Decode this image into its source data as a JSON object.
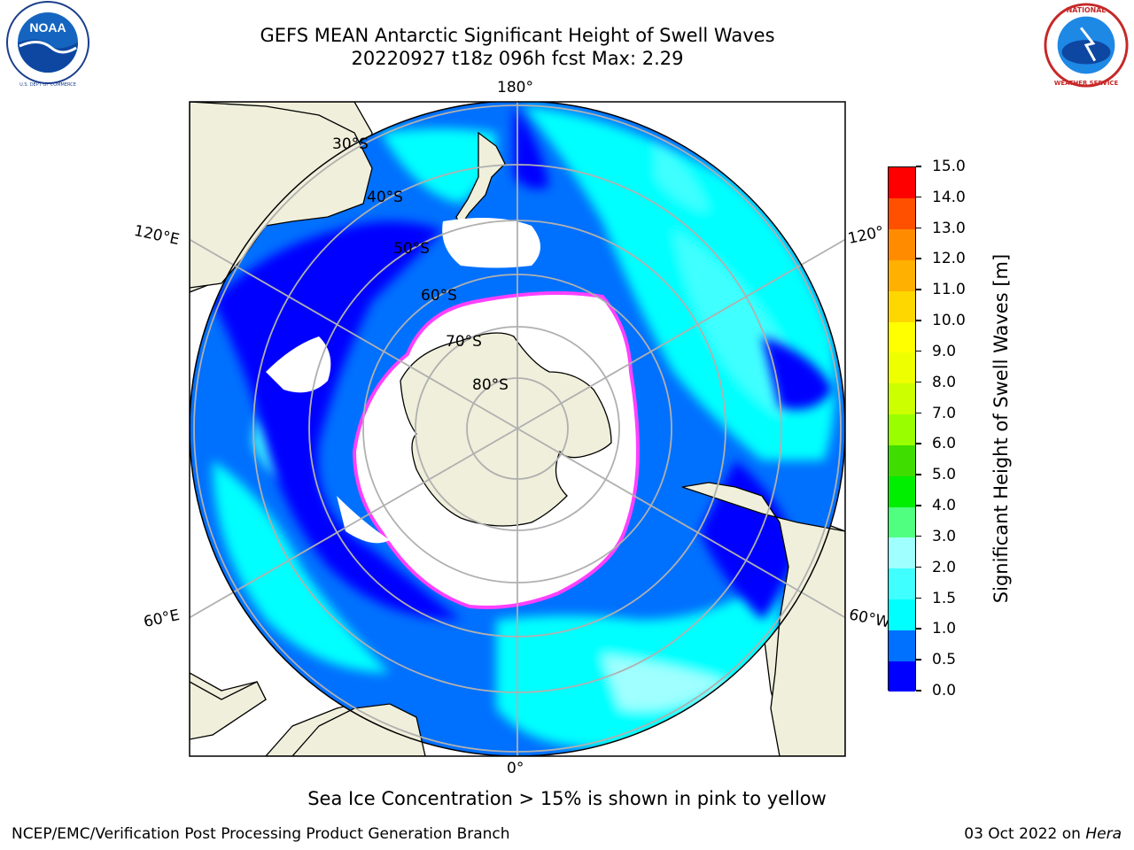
{
  "title": {
    "line1": "GEFS MEAN Antarctic Significant Height of Swell Waves",
    "line2": "20220927 t18z 096h fcst   Max: 2.29"
  },
  "map": {
    "projection": "south-polar-stereographic",
    "lon_labels": [
      "180°",
      "120°E",
      "120°",
      "60°E",
      "60°W",
      "0°"
    ],
    "lat_labels": [
      "30°S",
      "40°S",
      "50°S",
      "60°S",
      "70°S",
      "80°S"
    ]
  },
  "colorbar": {
    "title": "Significant Height of Swell Waves [m]",
    "ticks": [
      "0.0",
      "0.5",
      "1.0",
      "1.5",
      "2.0",
      "3.0",
      "4.0",
      "5.0",
      "6.0",
      "7.0",
      "8.0",
      "9.0",
      "10.0",
      "11.0",
      "12.0",
      "13.0",
      "14.0",
      "15.0"
    ],
    "colors": [
      "#0000ff",
      "#0070ff",
      "#00ffff",
      "#40ffff",
      "#a0ffff",
      "#50ff80",
      "#00ee00",
      "#40dd00",
      "#99ff00",
      "#ccff00",
      "#eeff00",
      "#ffff00",
      "#ffd700",
      "#ffb000",
      "#ff8c00",
      "#ff5000",
      "#ff0000"
    ]
  },
  "chart_data": {
    "type": "heatmap",
    "title": "GEFS MEAN Antarctic Significant Height of Swell Waves",
    "subtitle": "20220927 t18z 096h fcst   Max: 2.29",
    "variable": "Significant Height of Swell Waves [m]",
    "max_value": 2.29,
    "colorbar_range": [
      0.0,
      15.0
    ]
  },
  "footer": {
    "note": "Sea Ice Concentration > 15% is shown in pink to yellow",
    "credit": "NCEP/EMC/Verification Post Processing Product Generation Branch",
    "date": "03 Oct 2022 on ",
    "host": "Hera"
  },
  "logos": {
    "left": "noaa-logo",
    "right": "nws-logo",
    "left_ring_text": "NATIONAL OCEANIC AND ATMOSPHERIC ADMINISTRATION · U.S. DEPARTMENT OF COMMERCE",
    "right_ring_text": "NATIONAL WEATHER SERVICE"
  }
}
